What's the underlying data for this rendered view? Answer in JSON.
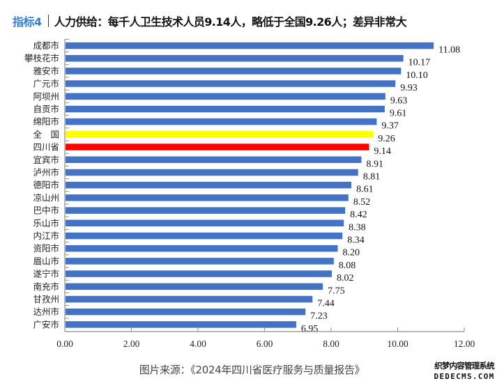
{
  "header": {
    "tag": "指标4",
    "title": "人力供给：每千人卫生技术人员9.14人，略低于全国9.26人；差异非常大"
  },
  "caption": "图片来源：《2024年四川省医疗服务与质量报告》",
  "watermark": {
    "line1": "织梦内容管理系统",
    "line2": "DEDECMS.COM"
  },
  "colors": {
    "default_bar": "#4472c4",
    "national_bar": "#ffff00",
    "province_bar": "#ff0000",
    "accent": "#2f7fe0"
  },
  "chart_data": {
    "type": "bar",
    "orientation": "horizontal",
    "title": "",
    "xlabel": "",
    "ylabel": "",
    "xlim": [
      0,
      12
    ],
    "xticks": [
      "0.00",
      "2.00",
      "4.00",
      "6.00",
      "8.00",
      "10.00",
      "12.00"
    ],
    "xtick_values": [
      0,
      2,
      4,
      6,
      8,
      10,
      12
    ],
    "grid": false,
    "legend": "none",
    "categories": [
      "成都市",
      "攀枝花市",
      "雅安市",
      "广元市",
      "阿坝州",
      "自贡市",
      "绵阳市",
      "全　国",
      "四川省",
      "宜宾市",
      "泸州市",
      "德阳市",
      "凉山州",
      "巴中市",
      "乐山市",
      "内江市",
      "资阳市",
      "眉山市",
      "遂宁市",
      "南充市",
      "甘孜州",
      "达州市",
      "广安市"
    ],
    "values": [
      11.08,
      10.17,
      10.1,
      9.93,
      9.63,
      9.61,
      9.37,
      9.26,
      9.14,
      8.91,
      8.81,
      8.61,
      8.52,
      8.42,
      8.38,
      8.34,
      8.2,
      8.08,
      8.02,
      7.75,
      7.44,
      7.23,
      6.95
    ],
    "value_labels": [
      "11.08",
      "10.17",
      "10.10",
      "9.93",
      "9.63",
      "9.61",
      "9.37",
      "9.26",
      "9.14",
      "8.91",
      "8.81",
      "8.61",
      "8.52",
      "8.42",
      "8.38",
      "8.34",
      "8.20",
      "8.08",
      "8.02",
      "7.75",
      "7.44",
      "7.23",
      "6.95"
    ],
    "highlight": {
      "全　国": "national",
      "四川省": "province"
    }
  }
}
